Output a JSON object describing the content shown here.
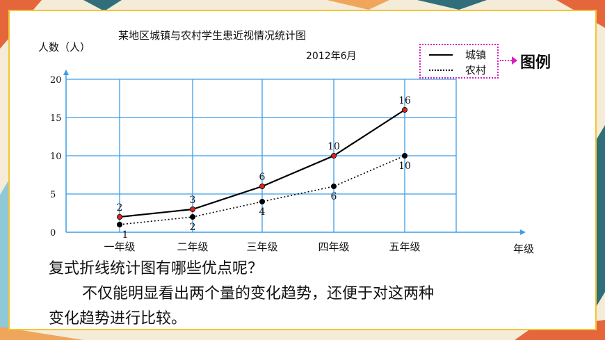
{
  "chart_data": {
    "type": "line",
    "title": "某地区城镇与农村学生患近视情况统计图",
    "subtitle": "2012年6月",
    "ylabel": "人数（人）",
    "xlabel": "年级",
    "categories": [
      "一年级",
      "二年级",
      "三年级",
      "四年级",
      "五年级"
    ],
    "yticks": [
      "0",
      "5",
      "10",
      "15",
      "20"
    ],
    "ylim": [
      0,
      20
    ],
    "grid": true,
    "legend_position": "top-right",
    "series": [
      {
        "name": "城镇",
        "values": [
          2,
          3,
          6,
          10,
          16
        ],
        "labels": [
          "2",
          "3",
          "6",
          "10",
          "16"
        ],
        "style": "solid"
      },
      {
        "name": "农村",
        "values": [
          1,
          2,
          4,
          6,
          10
        ],
        "labels": [
          "1",
          "2",
          "4",
          "6",
          "10"
        ],
        "style": "dotted"
      }
    ]
  },
  "legend": {
    "title": "图例"
  },
  "text": {
    "question": "复式折线统计图有哪些优点呢？",
    "answer_line1": "不仅能明显看出两个量的变化趋势，还便于对这两种",
    "answer_line2": "变化趋势进行比较。"
  },
  "colors": {
    "frame": "#f3c534",
    "grid": "#3a9ee8",
    "axis": "#3a9ee8",
    "legend_border": "#d61fbe",
    "urban_point": "#e02020",
    "rural_point": "#000000",
    "line": "#000000"
  }
}
